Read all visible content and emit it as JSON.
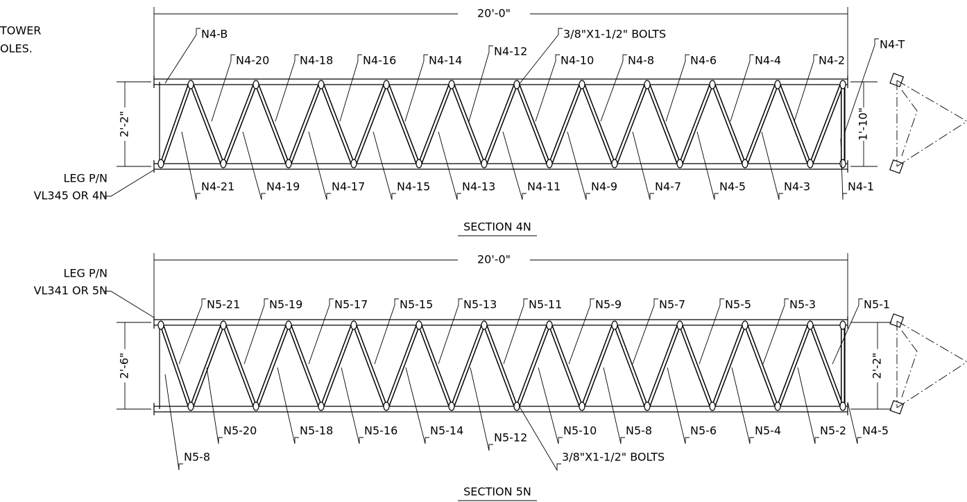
{
  "note": [
    "TOWER",
    "OLES."
  ],
  "sections": [
    {
      "title": "SECTION 4N",
      "length": "20'-0\"",
      "height_left": "2'-2\"",
      "height_right": "1'-10\"",
      "bolts": "3/8\"X1-1/2\" BOLTS",
      "leg": [
        "LEG P/N",
        "VL345 OR 4N"
      ],
      "top_labels": [
        "N4-B",
        "N4-20",
        "N4-18",
        "N4-16",
        "N4-14",
        "N4-12",
        "N4-10",
        "N4-8",
        "N4-6",
        "N4-4",
        "N4-2",
        "N4-T"
      ],
      "bottom_labels": [
        "N4-21",
        "N4-19",
        "N4-17",
        "N4-15",
        "N4-13",
        "N4-11",
        "N4-9",
        "N4-7",
        "N4-5",
        "N4-3",
        "N4-1"
      ]
    },
    {
      "title": "SECTION 5N",
      "length": "20'-0\"",
      "height_left": "2'-6\"",
      "height_right": "2'-2\"",
      "bolts": "3/8\"X1-1/2\" BOLTS",
      "leg": [
        "LEG P/N",
        "VL341 OR 5N"
      ],
      "top_labels": [
        "N5-21",
        "N5-19",
        "N5-17",
        "N5-15",
        "N5-13",
        "N5-11",
        "N5-9",
        "N5-7",
        "N5-5",
        "N5-3",
        "N5-1"
      ],
      "bottom_labels": [
        "N5-20",
        "N5-18",
        "N5-16",
        "N5-14",
        "N5-12",
        "N5-10",
        "N5-8",
        "N5-6",
        "N5-4",
        "N5-2",
        "N4-5",
        "N5-8"
      ]
    }
  ]
}
